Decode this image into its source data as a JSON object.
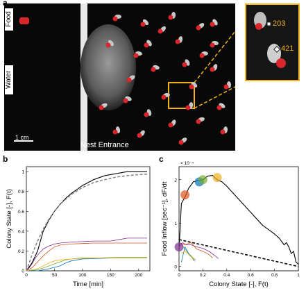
{
  "panel_labels": {
    "a": "a",
    "b": "b",
    "c": "c"
  },
  "photo": {
    "food_label": "Food",
    "water_label": "Water",
    "nest_entrance_label": "Nest Entrance",
    "scale_bar_label": "1 cm",
    "inset_ids": [
      "203",
      "421"
    ],
    "highlight_color": "#f2b316",
    "ant_marker_color": "#d9262a"
  },
  "chart_data": [
    {
      "type": "line",
      "panel": "b",
      "xlabel": "Time [min]",
      "ylabel": "Colony State [-], F(t)",
      "xlim": [
        0,
        220
      ],
      "ylim": [
        0,
        1.05
      ],
      "xticks": [
        0,
        50,
        100,
        150,
        200
      ],
      "yticks": [
        0,
        0.2,
        0.4,
        0.6,
        0.8,
        1
      ],
      "series": [
        {
          "color": "#000000",
          "style": "solid",
          "x": [
            0,
            10,
            20,
            25,
            30,
            40,
            50,
            60,
            70,
            80,
            90,
            100,
            110,
            120,
            130,
            140,
            150,
            160,
            170,
            180,
            190,
            200,
            215
          ],
          "y": [
            0,
            0.08,
            0.2,
            0.3,
            0.4,
            0.51,
            0.6,
            0.67,
            0.73,
            0.78,
            0.82,
            0.86,
            0.89,
            0.92,
            0.94,
            0.96,
            0.97,
            0.98,
            0.99,
            1.0,
            1.0,
            1.0,
            1.0
          ]
        },
        {
          "color": "#888888",
          "style": "dashed",
          "x": [
            0,
            10,
            20,
            30,
            40,
            50,
            60,
            80,
            100,
            120,
            140,
            160,
            180,
            200,
            215
          ],
          "y": [
            0,
            0.16,
            0.3,
            0.42,
            0.52,
            0.6,
            0.67,
            0.77,
            0.84,
            0.89,
            0.92,
            0.945,
            0.96,
            0.97,
            0.975
          ]
        },
        {
          "color": "#7e2f8e",
          "style": "solid",
          "x": [
            0,
            5,
            10,
            15,
            20,
            25,
            30,
            40,
            50,
            60,
            80,
            100,
            120,
            150,
            170,
            180,
            215
          ],
          "y": [
            0,
            0.03,
            0.07,
            0.12,
            0.16,
            0.19,
            0.22,
            0.25,
            0.27,
            0.28,
            0.29,
            0.295,
            0.3,
            0.3,
            0.32,
            0.33,
            0.33
          ]
        },
        {
          "color": "#d95319",
          "style": "solid",
          "x": [
            0,
            10,
            20,
            30,
            40,
            50,
            60,
            80,
            100,
            120,
            150,
            180,
            215
          ],
          "y": [
            0,
            0.03,
            0.09,
            0.15,
            0.2,
            0.24,
            0.26,
            0.27,
            0.275,
            0.28,
            0.28,
            0.28,
            0.28
          ]
        },
        {
          "color": "#77ac30",
          "style": "solid",
          "x": [
            0,
            20,
            30,
            40,
            50,
            60,
            70,
            80,
            90,
            100,
            130,
            160,
            215
          ],
          "y": [
            0,
            0.01,
            0.03,
            0.05,
            0.07,
            0.09,
            0.11,
            0.12,
            0.125,
            0.13,
            0.13,
            0.135,
            0.135
          ]
        },
        {
          "color": "#0072bd",
          "style": "solid",
          "x": [
            0,
            20,
            40,
            60,
            70,
            80,
            90,
            100,
            130,
            160,
            215
          ],
          "y": [
            0,
            0.0,
            0.02,
            0.05,
            0.08,
            0.1,
            0.11,
            0.12,
            0.125,
            0.13,
            0.13
          ]
        },
        {
          "color": "#edb120",
          "style": "solid",
          "x": [
            0,
            20,
            30,
            40,
            50,
            60,
            80,
            100,
            130,
            160,
            215
          ],
          "y": [
            0,
            0.02,
            0.05,
            0.08,
            0.1,
            0.11,
            0.12,
            0.125,
            0.13,
            0.13,
            0.13
          ]
        }
      ]
    },
    {
      "type": "line",
      "panel": "c",
      "xlabel": "Colony State [-], F(t)",
      "ylabel": "Food Inflow [sec⁻¹], dF/dt",
      "axis_multiplier": "× 10⁻⁴",
      "xlim": [
        0,
        1
      ],
      "ylim": [
        -0.1,
        2.3
      ],
      "xticks": [
        0,
        0.2,
        0.4,
        0.6,
        0.8,
        1
      ],
      "yticks": [
        0,
        1,
        2
      ],
      "series": [
        {
          "color": "#000000",
          "style": "solid",
          "x": [
            0.0,
            0.01,
            0.02,
            0.05,
            0.08,
            0.12,
            0.16,
            0.2,
            0.24,
            0.28,
            0.32,
            0.36,
            0.4,
            0.45,
            0.5,
            0.55,
            0.6,
            0.65,
            0.7,
            0.75,
            0.8,
            0.84,
            0.88,
            0.9,
            0.92,
            0.94,
            0.96,
            0.98,
            1.0
          ],
          "y": [
            0.4,
            0.9,
            1.45,
            1.6,
            1.8,
            1.95,
            1.98,
            2.0,
            2.08,
            2.1,
            2.0,
            1.95,
            1.85,
            1.7,
            1.55,
            1.4,
            1.25,
            1.1,
            0.95,
            0.85,
            0.75,
            0.65,
            0.5,
            0.55,
            0.45,
            0.3,
            0.35,
            0.1,
            0.05
          ]
        },
        {
          "color": "#000000",
          "style": "dashed",
          "x": [
            0.0,
            1.0
          ],
          "y": [
            0.62,
            0.0
          ]
        },
        {
          "color": "#7e2f8e",
          "style": "solid",
          "x": [
            0.0,
            0.03,
            0.06,
            0.1,
            0.15,
            0.2,
            0.25,
            0.3,
            0.33
          ],
          "y": [
            0.45,
            0.55,
            0.5,
            0.5,
            0.45,
            0.42,
            0.35,
            0.25,
            0.18
          ]
        },
        {
          "color": "#d95319",
          "style": "solid",
          "x": [
            0.0,
            0.05,
            0.1,
            0.15,
            0.2,
            0.25,
            0.28
          ],
          "y": [
            0.55,
            0.5,
            0.55,
            0.4,
            0.35,
            0.28,
            0.2
          ]
        },
        {
          "color": "#77ac30",
          "style": "solid",
          "x": [
            0.02,
            0.05,
            0.08,
            0.11,
            0.14
          ],
          "y": [
            0.5,
            0.4,
            0.3,
            0.22,
            0.15
          ]
        },
        {
          "color": "#0072bd",
          "style": "solid",
          "x": [
            0.02,
            0.05,
            0.08,
            0.11,
            0.13
          ],
          "y": [
            0.1,
            0.45,
            0.3,
            0.2,
            0.12
          ]
        },
        {
          "color": "#edb120",
          "style": "solid",
          "x": [
            0.02,
            0.05,
            0.08,
            0.11,
            0.13
          ],
          "y": [
            0.3,
            0.35,
            0.28,
            0.2,
            0.15
          ]
        }
      ],
      "markers": [
        {
          "x": 0.0,
          "y": 0.45,
          "color": "#7e2f8e"
        },
        {
          "x": 0.05,
          "y": 1.65,
          "color": "#d95319"
        },
        {
          "x": 0.17,
          "y": 1.95,
          "color": "#0072bd"
        },
        {
          "x": 0.2,
          "y": 2.0,
          "color": "#77ac30"
        },
        {
          "x": 0.32,
          "y": 2.05,
          "color": "#edb120"
        }
      ]
    }
  ]
}
